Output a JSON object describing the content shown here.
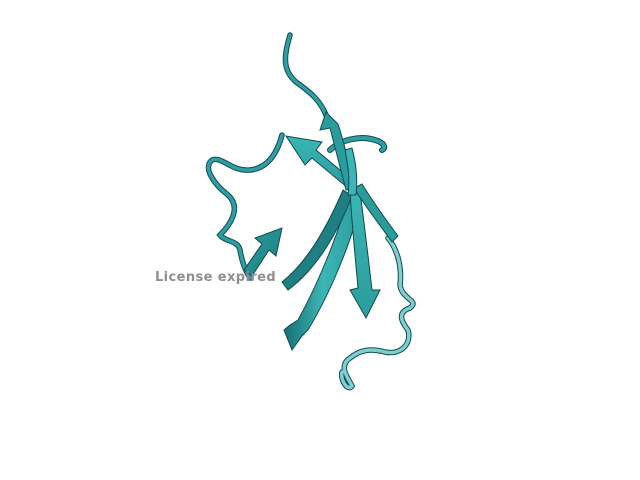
{
  "viewer": {
    "watermark_text": "License expired"
  },
  "structure": {
    "representation": "cartoon",
    "colors": {
      "strand_light": "#3bb5b5",
      "strand_mid": "#2a9c9c",
      "strand_dark": "#1a6f72",
      "loop": "#2e9ea3",
      "loop_light": "#7fcfd1",
      "shadow": "#0f4c50",
      "background": "#ffffff"
    }
  }
}
